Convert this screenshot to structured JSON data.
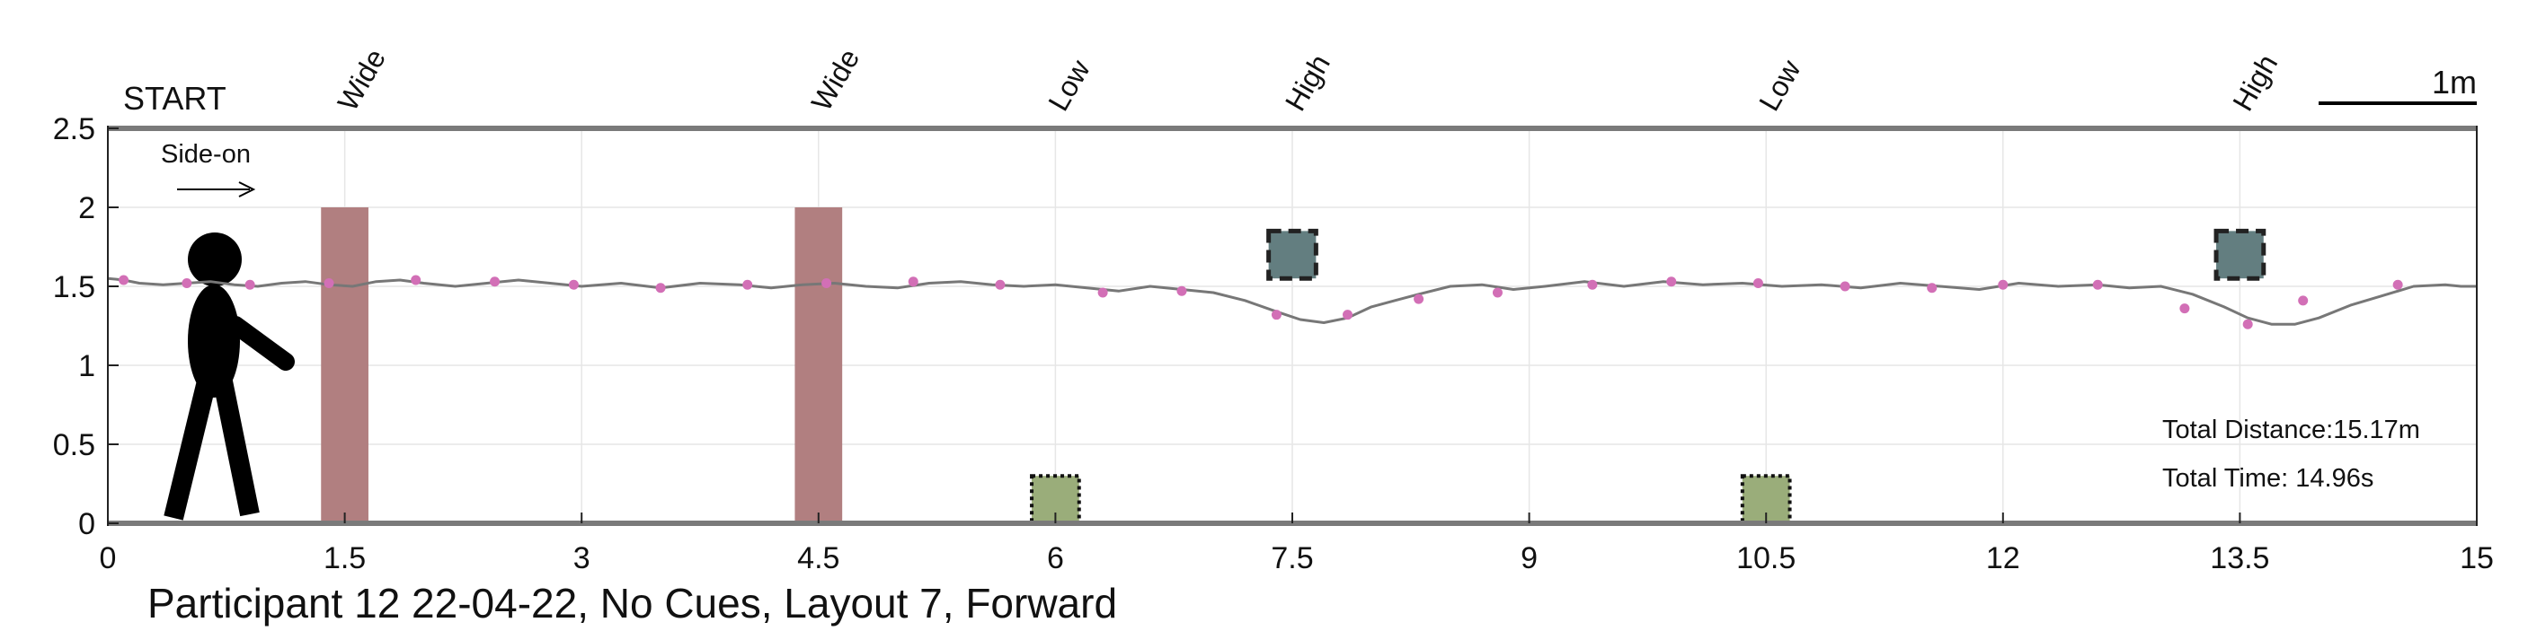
{
  "chart_data": {
    "type": "line",
    "title": "Participant 12 22-04-22, No Cues, Layout 7, Forward",
    "xlim": [
      0,
      15
    ],
    "ylim": [
      0,
      2.5
    ],
    "x_ticks": [
      "0",
      "1.5",
      "3",
      "4.5",
      "6",
      "7.5",
      "9",
      "10.5",
      "12",
      "13.5",
      "15"
    ],
    "y_ticks": [
      "0",
      "0.5",
      "1",
      "1.5",
      "2",
      "2.5"
    ],
    "grid": true,
    "start_label": "START",
    "scale_bar_label": "1m",
    "scale_bar_length": 1,
    "view_label": "Side-on",
    "total_distance": "Total Distance:15.17m",
    "total_time": "Total Time: 14.96s",
    "obstacles": [
      {
        "label": "Wide",
        "x": 1.5,
        "type": "wide",
        "y0": 0,
        "y1": 2.0,
        "width": 0.3,
        "color": "#b17f80"
      },
      {
        "label": "Wide",
        "x": 4.5,
        "type": "wide",
        "y0": 0,
        "y1": 2.0,
        "width": 0.3,
        "color": "#b17f80"
      },
      {
        "label": "Low",
        "x": 6.0,
        "type": "low",
        "y0": 0,
        "y1": 0.3,
        "width": 0.3,
        "color": "#9aad7a"
      },
      {
        "label": "High",
        "x": 7.5,
        "type": "high",
        "y0": 1.55,
        "y1": 1.85,
        "width": 0.3,
        "color": "#637e80"
      },
      {
        "label": "Low",
        "x": 10.5,
        "type": "low",
        "y0": 0,
        "y1": 0.3,
        "width": 0.3,
        "color": "#9aad7a"
      },
      {
        "label": "High",
        "x": 13.5,
        "type": "high",
        "y0": 1.55,
        "y1": 1.85,
        "width": 0.3,
        "color": "#637e80"
      }
    ],
    "series": [
      {
        "x": [
          0,
          0.1,
          0.2,
          0.35,
          0.5,
          0.65,
          0.8,
          0.95,
          1.1,
          1.25,
          1.4,
          1.55,
          1.7,
          1.85,
          2.0,
          2.2,
          2.4,
          2.6,
          2.8,
          3.0,
          3.25,
          3.5,
          3.75,
          4.0,
          4.2,
          4.4,
          4.6,
          4.8,
          5.0,
          5.2,
          5.4,
          5.6,
          5.8,
          6.0,
          6.2,
          6.4,
          6.6,
          6.8,
          7.0,
          7.2,
          7.4,
          7.55,
          7.7,
          7.85,
          8.0,
          8.15,
          8.3,
          8.5,
          8.7,
          8.9,
          9.1,
          9.35,
          9.6,
          9.85,
          10.1,
          10.35,
          10.6,
          10.85,
          11.1,
          11.35,
          11.6,
          11.85,
          12.1,
          12.35,
          12.6,
          12.8,
          13.0,
          13.2,
          13.4,
          13.55,
          13.7,
          13.85,
          14.0,
          14.2,
          14.4,
          14.6,
          14.8,
          14.9,
          15.0
        ],
        "y": [
          1.55,
          1.54,
          1.52,
          1.51,
          1.52,
          1.53,
          1.51,
          1.5,
          1.52,
          1.53,
          1.51,
          1.5,
          1.53,
          1.54,
          1.52,
          1.5,
          1.52,
          1.54,
          1.52,
          1.5,
          1.52,
          1.49,
          1.52,
          1.51,
          1.49,
          1.51,
          1.52,
          1.5,
          1.49,
          1.52,
          1.53,
          1.51,
          1.5,
          1.51,
          1.49,
          1.47,
          1.5,
          1.48,
          1.46,
          1.41,
          1.34,
          1.29,
          1.27,
          1.3,
          1.37,
          1.41,
          1.45,
          1.5,
          1.51,
          1.48,
          1.5,
          1.53,
          1.5,
          1.53,
          1.51,
          1.52,
          1.5,
          1.51,
          1.49,
          1.52,
          1.5,
          1.48,
          1.52,
          1.5,
          1.51,
          1.49,
          1.5,
          1.45,
          1.37,
          1.3,
          1.26,
          1.26,
          1.3,
          1.38,
          1.44,
          1.5,
          1.51,
          1.5,
          1.5
        ]
      }
    ],
    "markers": {
      "x": [
        0.1,
        0.5,
        0.9,
        1.4,
        1.95,
        2.45,
        2.95,
        3.5,
        4.05,
        4.55,
        5.1,
        5.65,
        6.3,
        6.8,
        7.4,
        7.85,
        8.3,
        8.8,
        9.4,
        9.9,
        10.45,
        11.0,
        11.55,
        12.0,
        12.6,
        13.15,
        13.55,
        13.9,
        14.5
      ],
      "y": [
        1.54,
        1.52,
        1.51,
        1.52,
        1.54,
        1.53,
        1.51,
        1.49,
        1.51,
        1.52,
        1.53,
        1.51,
        1.46,
        1.47,
        1.32,
        1.32,
        1.42,
        1.46,
        1.51,
        1.53,
        1.52,
        1.5,
        1.49,
        1.51,
        1.51,
        1.36,
        1.26,
        1.41,
        1.51
      ],
      "color": "#d26fb6"
    },
    "line_color": "#777777"
  }
}
